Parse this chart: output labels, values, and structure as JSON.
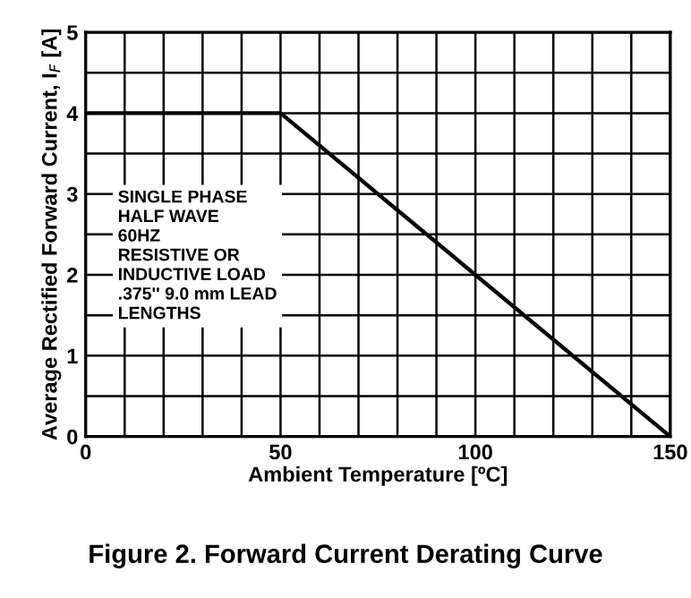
{
  "chart_data": {
    "type": "line",
    "title": "Figure 2. Forward Current Derating Curve",
    "xlabel": "Ambient Temperature [ºC]",
    "ylabel": "Average Rectified Forward Current, I$_{F}$ [A]",
    "x": [
      0,
      50,
      150
    ],
    "series": [
      {
        "color": "#000000",
        "values": [
          4,
          4,
          0
        ]
      }
    ],
    "xlim": [
      0,
      150
    ],
    "xticks": [
      0,
      {
        "value": 10,
        "label": null
      },
      {
        "value": 20,
        "label": null
      },
      {
        "value": 30,
        "label": null
      },
      {
        "value": 40,
        "label": null
      },
      50,
      {
        "value": 60,
        "label": null
      },
      {
        "value": 70,
        "label": null
      },
      {
        "value": 80,
        "label": null
      },
      {
        "value": 90,
        "label": null
      },
      100,
      {
        "value": 110,
        "label": null
      },
      {
        "value": 120,
        "label": null
      },
      {
        "value": 130,
        "label": null
      },
      {
        "value": 140,
        "label": null
      },
      150
    ],
    "ylim": [
      0,
      5
    ],
    "yticks": [
      0,
      {
        "value": 0.5,
        "label": null
      },
      1,
      {
        "value": 1.5,
        "label": null
      },
      2,
      {
        "value": 2.5,
        "label": null
      },
      3,
      {
        "value": 3.5,
        "label": null
      },
      4,
      {
        "value": 4.5,
        "label": null
      },
      5
    ],
    "grid": true,
    "marker": "none",
    "line_style": "solid",
    "annotations": [
      "SINGLE PHASE\nHALF WAVE\n60HZ\nRESISTIVE OR\nINDUCTIVE LOAD\n.375'' 9.0 mm LEAD\nLENGTHS"
    ]
  }
}
